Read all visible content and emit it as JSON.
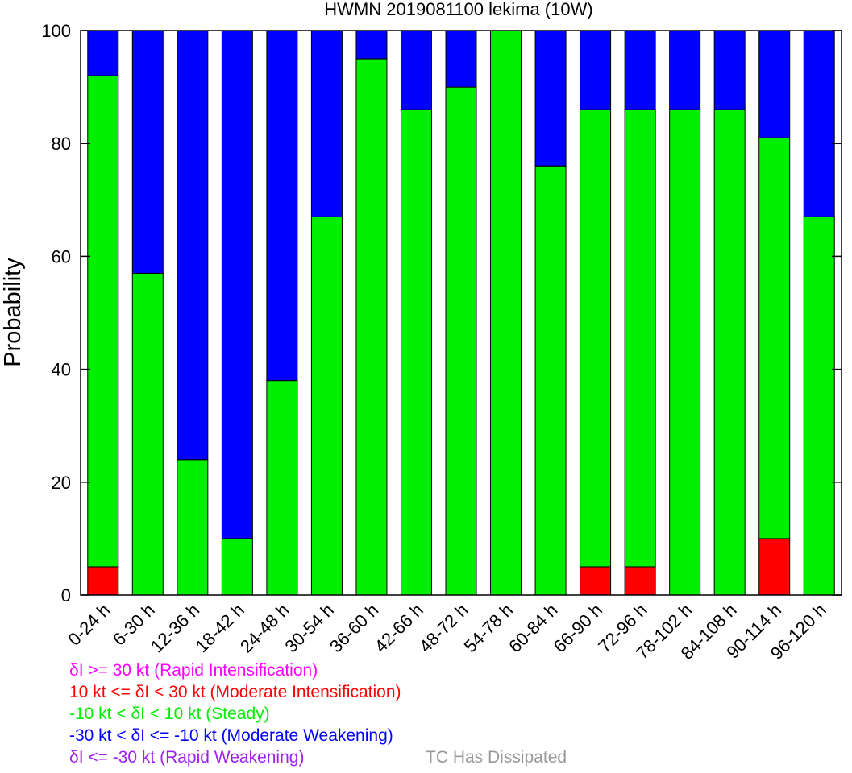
{
  "chart_data": {
    "type": "bar",
    "stacked": true,
    "title": "HWMN 2019081100 lekima (10W)",
    "ylabel": "Probability",
    "xlabel": "",
    "ylim": [
      0,
      100
    ],
    "yticks": [
      0,
      20,
      40,
      60,
      80,
      100
    ],
    "categories": [
      "0-24 h",
      "6-30 h",
      "12-36 h",
      "18-42 h",
      "24-48 h",
      "30-54 h",
      "36-60 h",
      "42-66 h",
      "48-72 h",
      "54-78 h",
      "60-84 h",
      "66-90 h",
      "72-96 h",
      "78-102 h",
      "84-108 h",
      "90-114 h",
      "96-120 h"
    ],
    "series": [
      {
        "name": "δI >= 30 kt (Rapid Intensification)",
        "color": "#ff00ff",
        "values": [
          0,
          0,
          0,
          0,
          0,
          0,
          0,
          0,
          0,
          0,
          0,
          0,
          0,
          0,
          0,
          0,
          0
        ]
      },
      {
        "name": "10 kt <= δI < 30 kt (Moderate Intensification)",
        "color": "#ff0000",
        "values": [
          5,
          0,
          0,
          0,
          0,
          0,
          0,
          0,
          0,
          0,
          0,
          5,
          5,
          0,
          0,
          10,
          0
        ]
      },
      {
        "name": "-10 kt < δI < 10 kt (Steady)",
        "color": "#00ee00",
        "values": [
          87,
          57,
          24,
          10,
          38,
          67,
          95,
          86,
          90,
          100,
          76,
          81,
          81,
          86,
          86,
          71,
          67
        ]
      },
      {
        "name": "-30 kt < δI <= -10 kt (Moderate Weakening)",
        "color": "#0000ff",
        "values": [
          8,
          43,
          76,
          90,
          62,
          33,
          5,
          14,
          10,
          0,
          24,
          14,
          14,
          14,
          14,
          19,
          33
        ]
      },
      {
        "name": "δI <= -30 kt (Rapid Weakening)",
        "color": "#a020f0",
        "values": [
          0,
          0,
          0,
          0,
          0,
          0,
          0,
          0,
          0,
          0,
          0,
          0,
          0,
          0,
          0,
          0,
          0
        ]
      }
    ],
    "dissipated_label": "TC Has Dissipated",
    "dissipated_color": "#999999",
    "grid": false,
    "legend_placement": "bottom-left"
  }
}
